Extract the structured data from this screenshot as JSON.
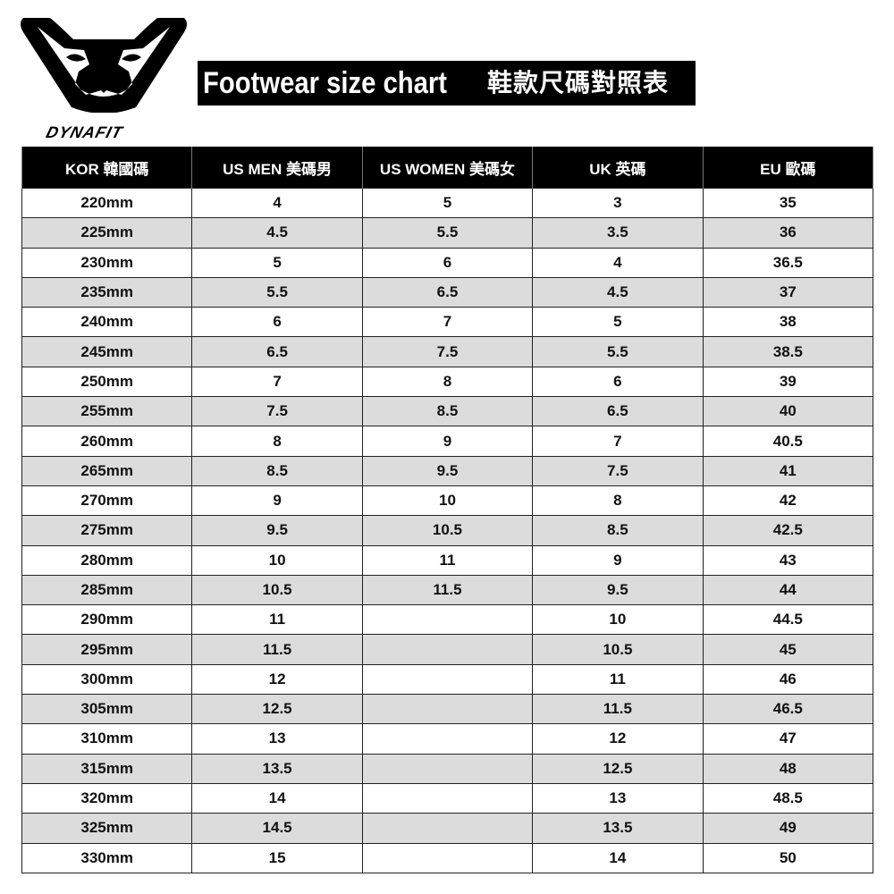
{
  "brand": {
    "name": "DYNAFIT",
    "logo_icon": "snow-leopard-head-icon"
  },
  "title": {
    "en": "Footwear size chart",
    "zh": "鞋款尺碼對照表"
  },
  "table": {
    "headers": [
      "KOR  韓國碼",
      "US MEN  美碼男",
      "US WOMEN  美碼女",
      "UK 英碼",
      "EU 歐碼"
    ],
    "rows": [
      [
        "220mm",
        "4",
        "5",
        "3",
        "35"
      ],
      [
        "225mm",
        "4.5",
        "5.5",
        "3.5",
        "36"
      ],
      [
        "230mm",
        "5",
        "6",
        "4",
        "36.5"
      ],
      [
        "235mm",
        "5.5",
        "6.5",
        "4.5",
        "37"
      ],
      [
        "240mm",
        "6",
        "7",
        "5",
        "38"
      ],
      [
        "245mm",
        "6.5",
        "7.5",
        "5.5",
        "38.5"
      ],
      [
        "250mm",
        "7",
        "8",
        "6",
        "39"
      ],
      [
        "255mm",
        "7.5",
        "8.5",
        "6.5",
        "40"
      ],
      [
        "260mm",
        "8",
        "9",
        "7",
        "40.5"
      ],
      [
        "265mm",
        "8.5",
        "9.5",
        "7.5",
        "41"
      ],
      [
        "270mm",
        "9",
        "10",
        "8",
        "42"
      ],
      [
        "275mm",
        "9.5",
        "10.5",
        "8.5",
        "42.5"
      ],
      [
        "280mm",
        "10",
        "11",
        "9",
        "43"
      ],
      [
        "285mm",
        "10.5",
        "11.5",
        "9.5",
        "44"
      ],
      [
        "290mm",
        "11",
        "",
        "10",
        "44.5"
      ],
      [
        "295mm",
        "11.5",
        "",
        "10.5",
        "45"
      ],
      [
        "300mm",
        "12",
        "",
        "11",
        "46"
      ],
      [
        "305mm",
        "12.5",
        "",
        "11.5",
        "46.5"
      ],
      [
        "310mm",
        "13",
        "",
        "12",
        "47"
      ],
      [
        "315mm",
        "13.5",
        "",
        "12.5",
        "48"
      ],
      [
        "320mm",
        "14",
        "",
        "13",
        "48.5"
      ],
      [
        "325mm",
        "14.5",
        "",
        "13.5",
        "49"
      ],
      [
        "330mm",
        "15",
        "",
        "14",
        "50"
      ]
    ]
  }
}
